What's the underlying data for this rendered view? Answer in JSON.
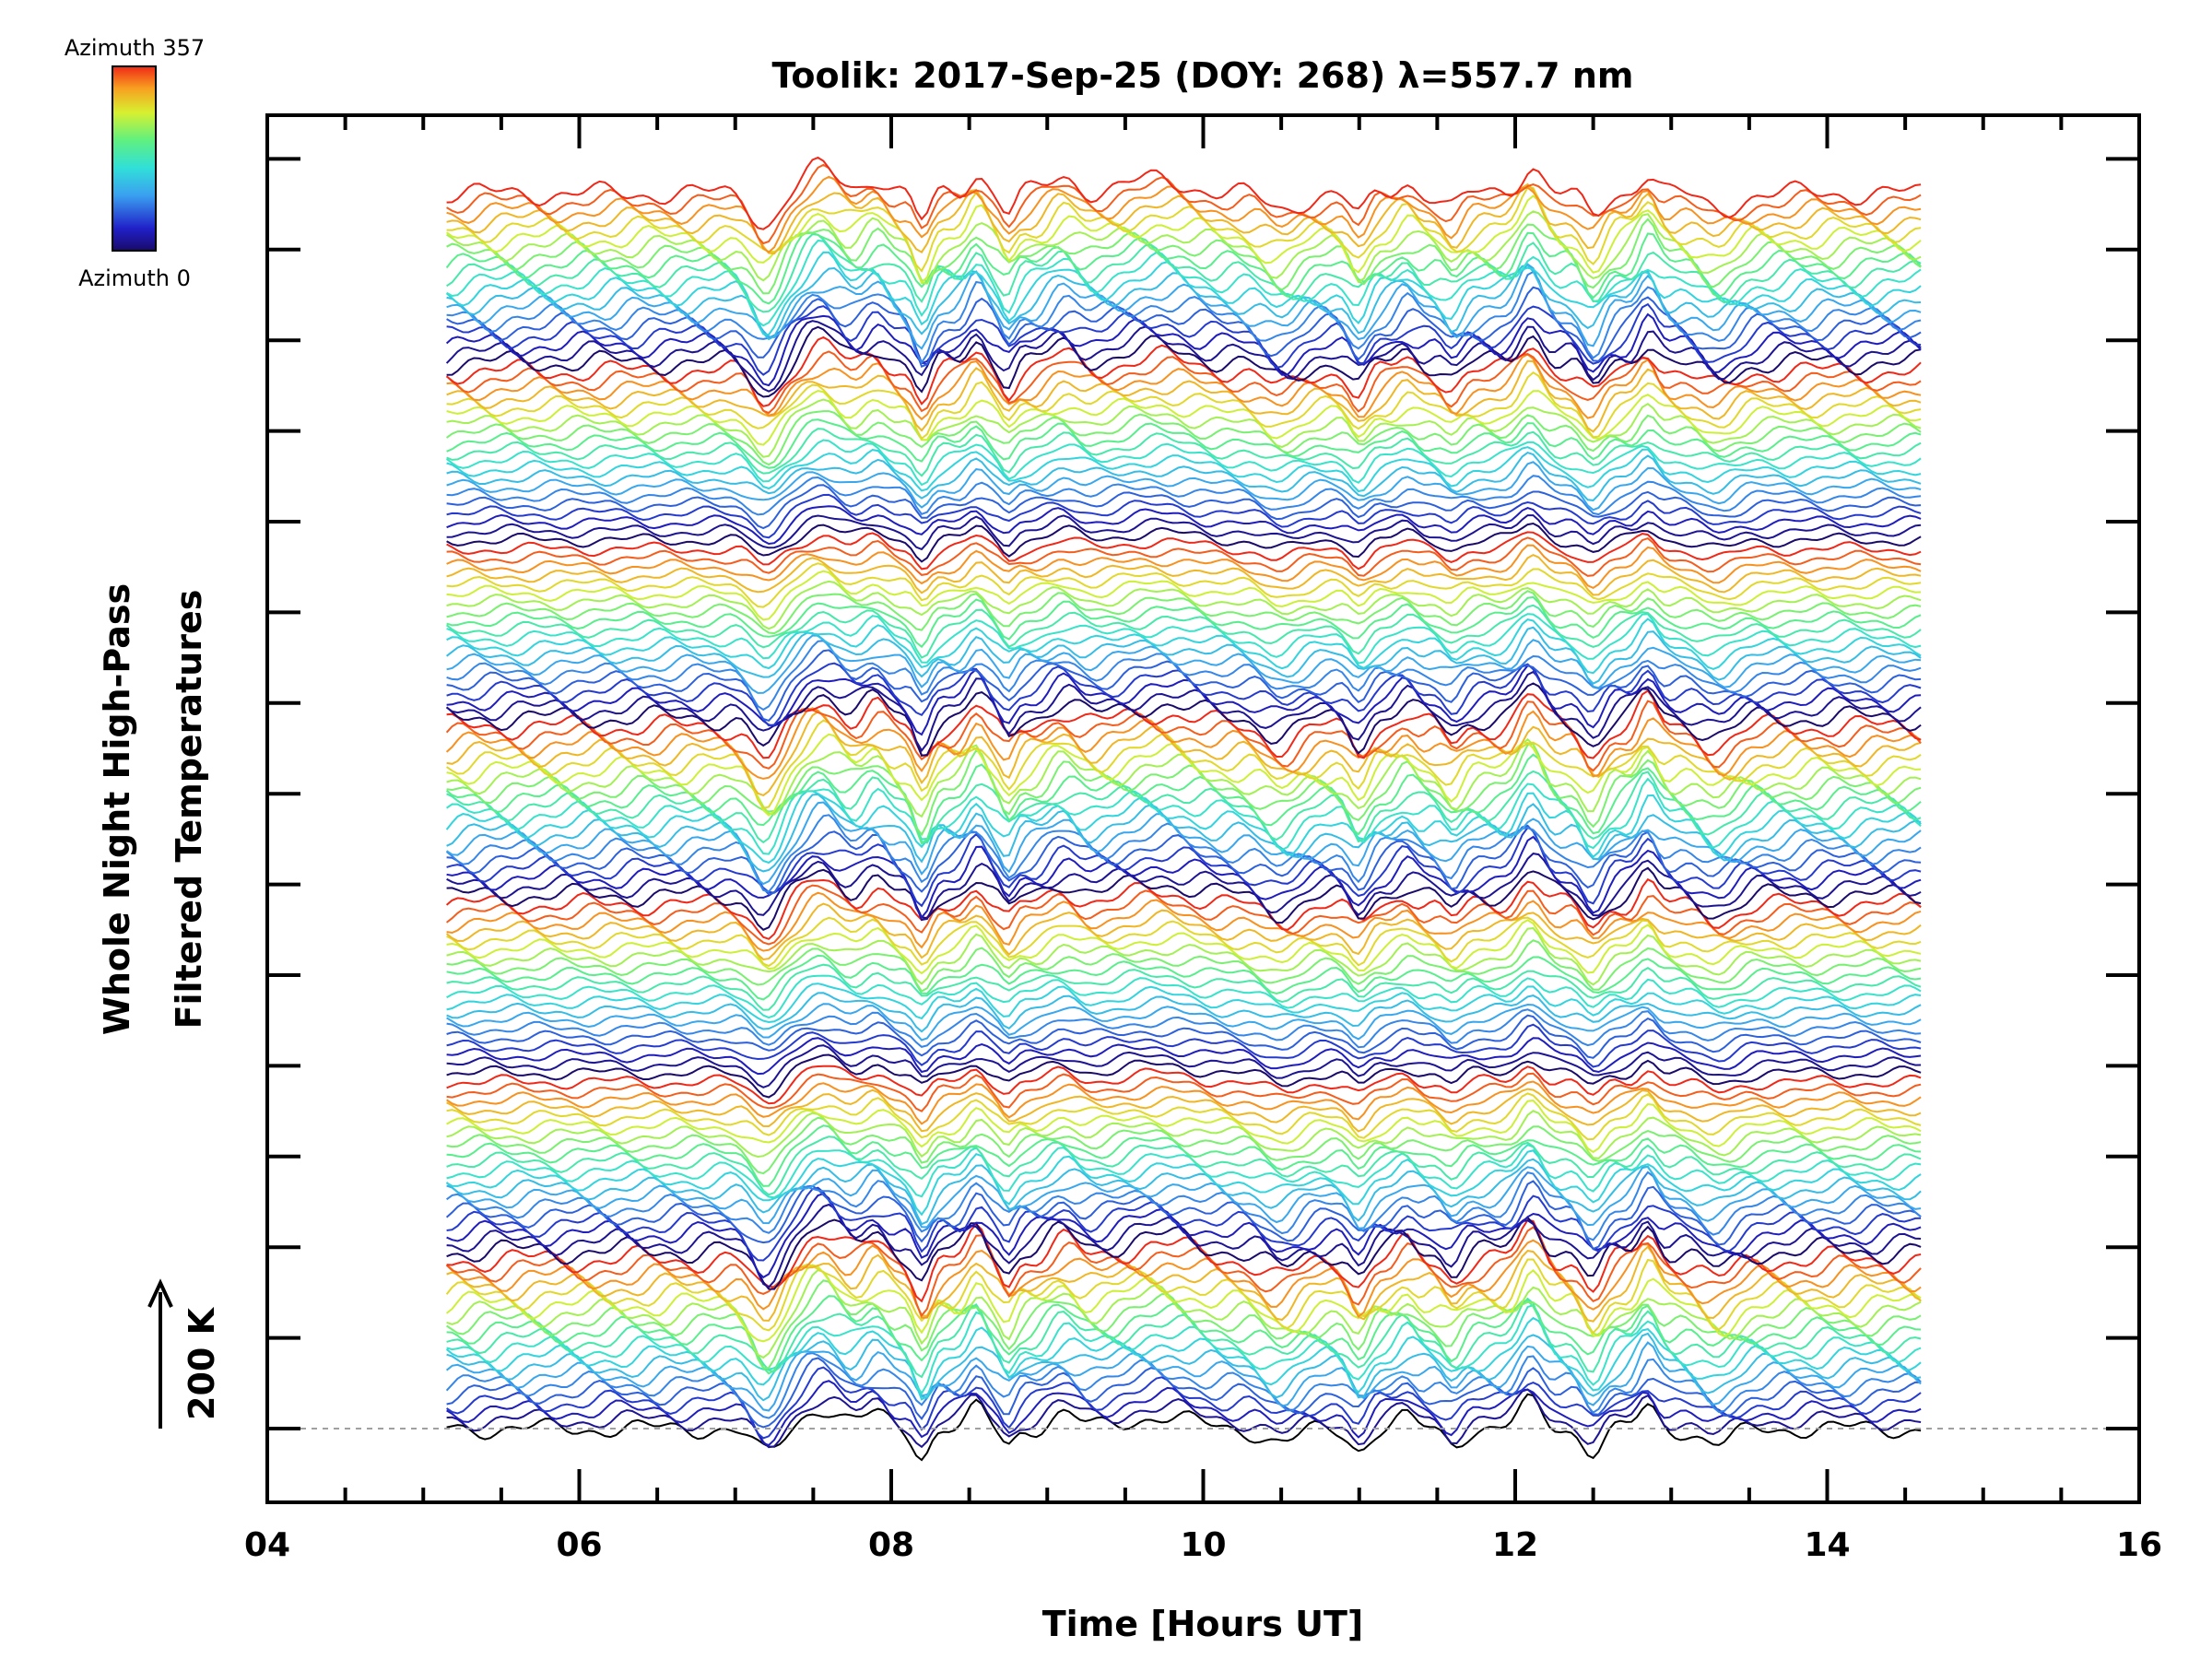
{
  "chart_data": {
    "type": "line",
    "title": "Toolik: 2017-Sep-25 (DOY: 268) λ=557.7 nm",
    "xlabel": "Time [Hours UT]",
    "ylabel_line1": "Whole Night High-Pass",
    "ylabel_line2": "Filtered Temperatures",
    "scale_label": "200 K",
    "xlim": [
      4,
      16
    ],
    "x_ticks": [
      "04",
      "06",
      "08",
      "10",
      "12",
      "14",
      "16"
    ],
    "x_tick_values": [
      4,
      6,
      8,
      10,
      12,
      14,
      16
    ],
    "data_x_range": [
      5.15,
      14.6
    ],
    "n_traces": 140,
    "colorbar": {
      "top_label": "Azimuth 357",
      "bottom_label": "Azimuth 0",
      "min": 0,
      "max": 357
    },
    "baseline_style": "dashed"
  }
}
